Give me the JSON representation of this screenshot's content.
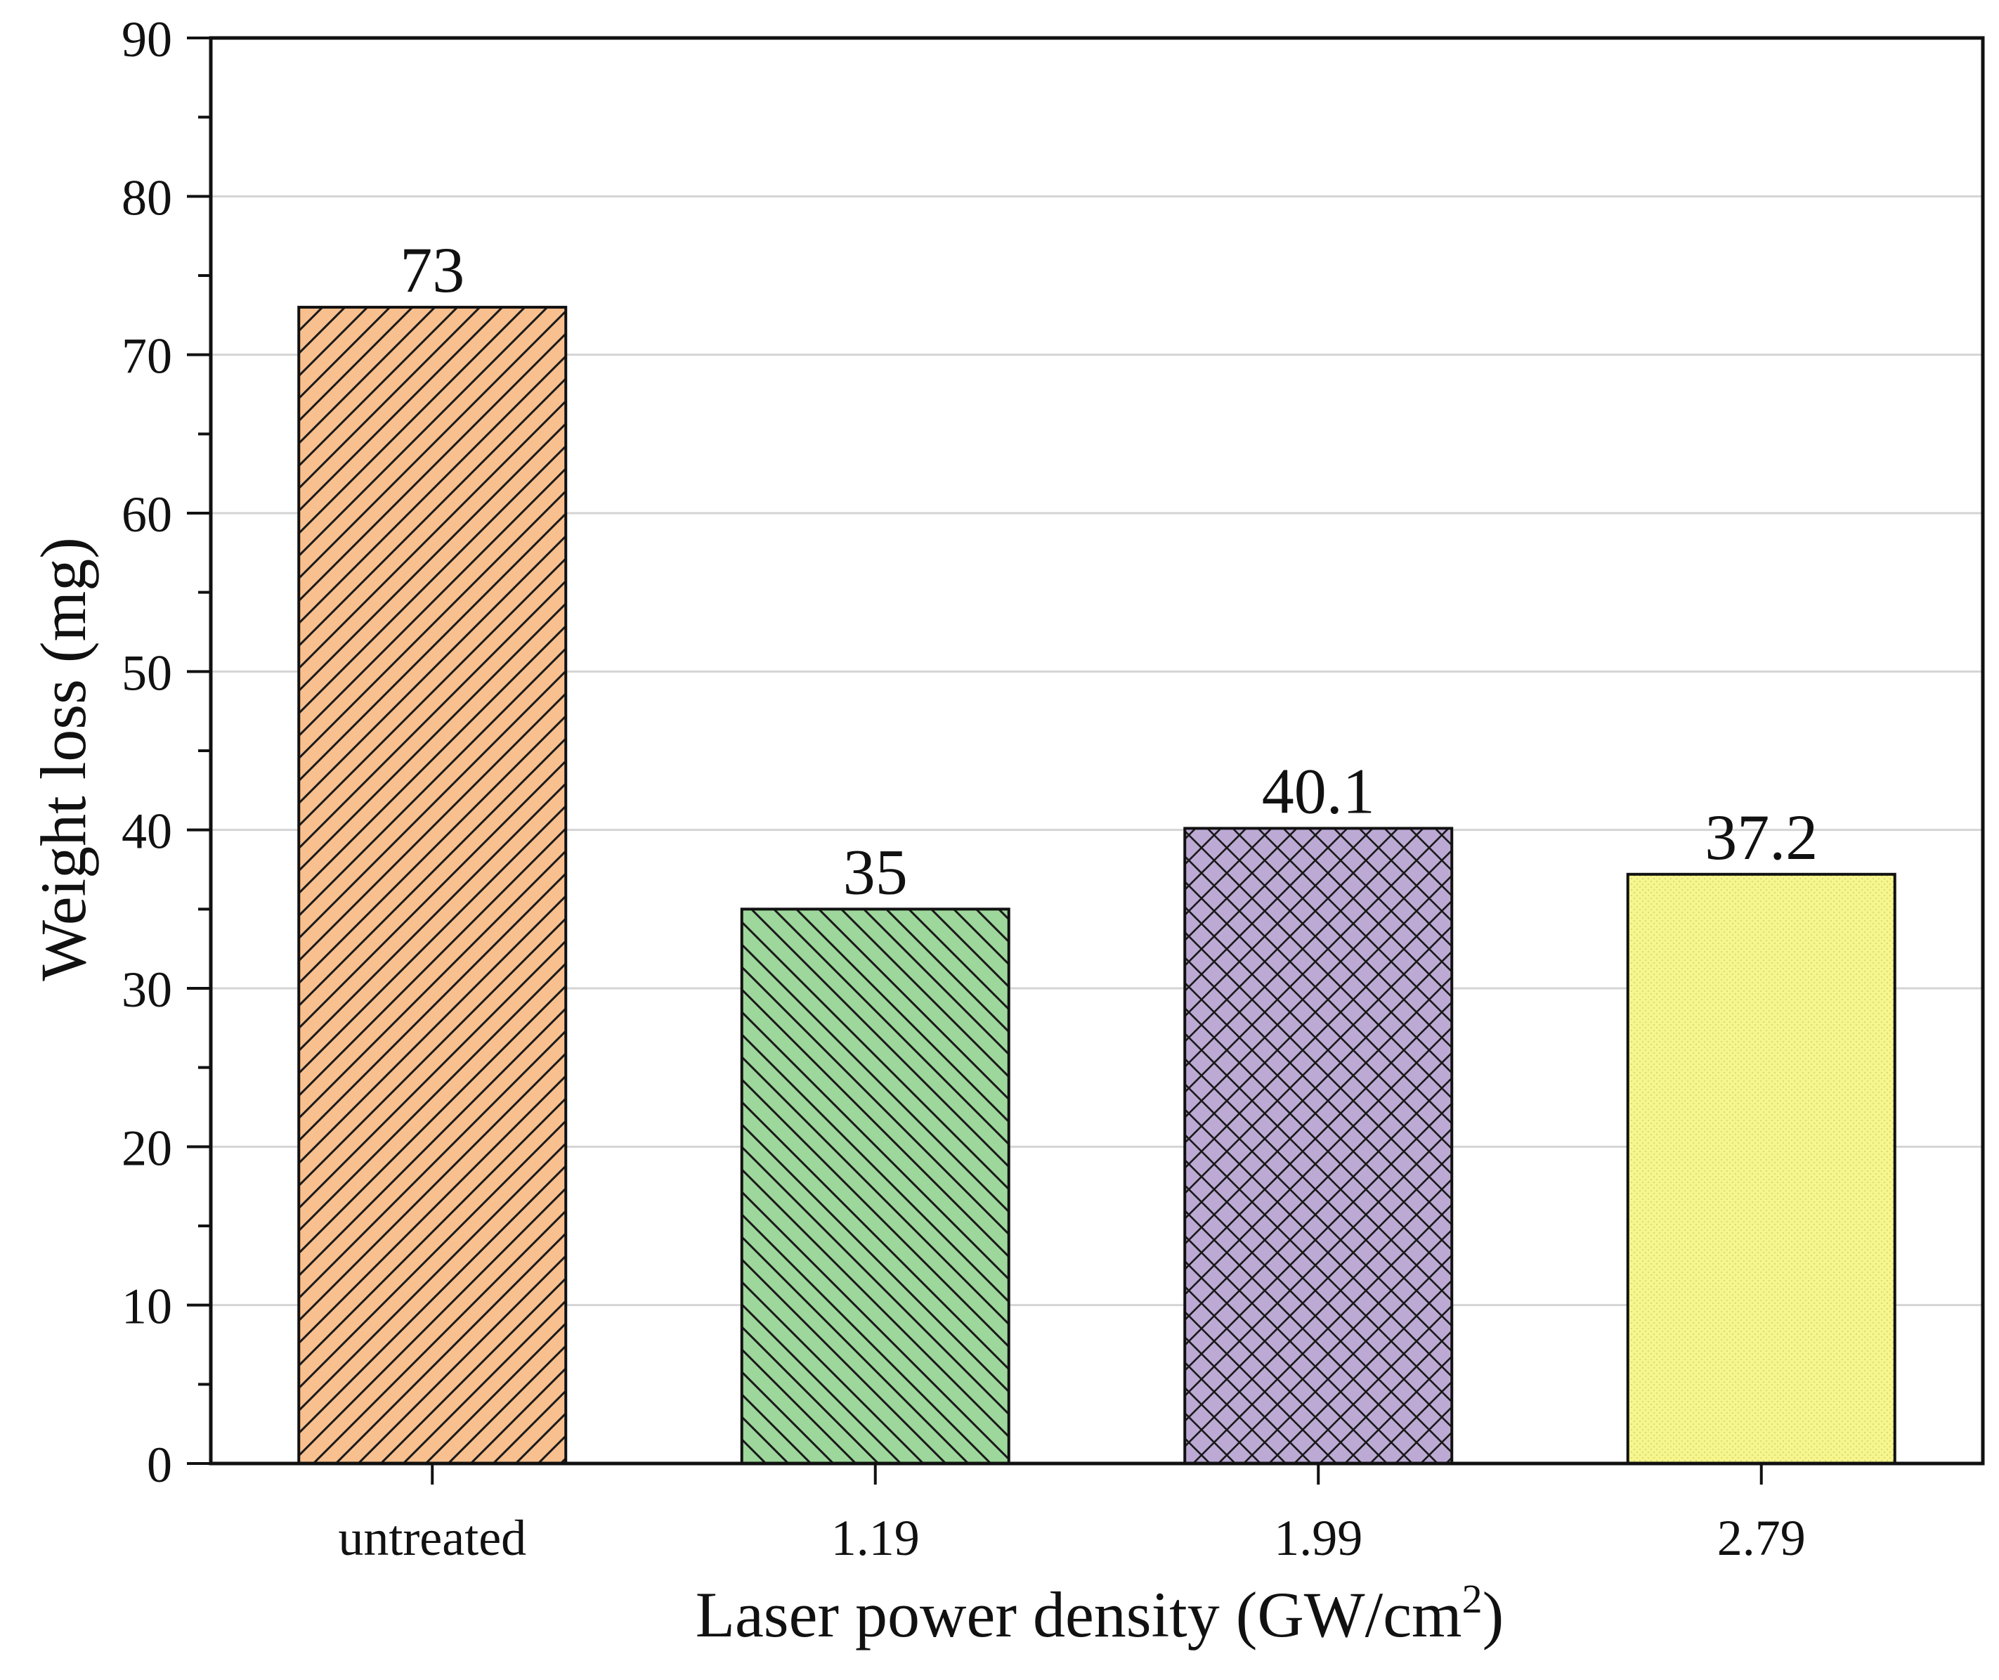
{
  "chart_data": {
    "type": "bar",
    "title": "",
    "xlabel": "Laser power density (GW/cm",
    "xlabel_superscript": "2",
    "xlabel_suffix": ")",
    "ylabel": "Weight loss (mg)",
    "categories": [
      "untreated",
      "1.19",
      "1.99",
      "2.79"
    ],
    "values": [
      73,
      35,
      40.1,
      37.2
    ],
    "data_labels": [
      "73",
      "35",
      "40.1",
      "37.2"
    ],
    "ylim": [
      0,
      90
    ],
    "yticks": [
      0,
      10,
      20,
      30,
      40,
      50,
      60,
      70,
      80,
      90
    ],
    "ytick_labels": [
      "0",
      "10",
      "20",
      "30",
      "40",
      "50",
      "60",
      "70",
      "80",
      "90"
    ],
    "grid": true,
    "colors": [
      "#F8C08E",
      "#9ED79B",
      "#BCAAD5",
      "#F6F68E"
    ],
    "hatches": [
      "forward-diagonal",
      "back-diagonal",
      "crosshatch",
      "dots"
    ]
  }
}
